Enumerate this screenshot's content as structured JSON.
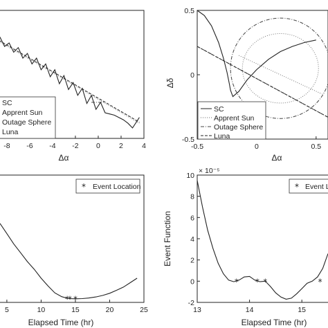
{
  "chart_data": [
    {
      "id": "tl",
      "type": "line",
      "xlabel": "Δα",
      "ylabel": "",
      "xlim": [
        -8.6,
        4.0
      ],
      "ylim": [
        -0.55,
        0.55
      ],
      "xticks": [
        -8,
        -6,
        -4,
        -2,
        0,
        2,
        4
      ],
      "yticks": [],
      "legend_position": "bottom-left",
      "series": [
        {
          "name": "SC",
          "style": "solid",
          "x": [
            -9.0,
            -8.6,
            -8.2,
            -7.8,
            -7.4,
            -7.0,
            -6.6,
            -6.2,
            -5.8,
            -5.4,
            -5.0,
            -4.6,
            -4.2,
            -3.8,
            -3.4,
            -3.0,
            -2.6,
            -2.2,
            -1.8,
            -1.4,
            -1.0,
            -0.6,
            -0.2,
            0.2,
            0.6,
            1.0,
            1.4,
            1.8,
            2.2,
            2.6,
            3.0,
            3.4,
            3.6
          ],
          "y": [
            0.3,
            0.32,
            0.24,
            0.27,
            0.19,
            0.23,
            0.14,
            0.18,
            0.09,
            0.14,
            0.04,
            0.09,
            -0.02,
            0.04,
            -0.08,
            -0.01,
            -0.13,
            -0.07,
            -0.18,
            -0.12,
            -0.25,
            -0.18,
            -0.3,
            -0.24,
            -0.33,
            -0.34,
            -0.35,
            -0.37,
            -0.39,
            -0.42,
            -0.46,
            -0.4,
            -0.37
          ]
        },
        {
          "name": "Apprent Sun",
          "style": "dotted",
          "x": [
            -9.0,
            3.6
          ],
          "y": [
            0.3,
            -0.42
          ]
        },
        {
          "name": "Outage Sphere",
          "style": "dashdot",
          "x": [
            -0.6,
            0.6
          ],
          "y": [
            -0.24,
            -0.24
          ]
        },
        {
          "name": "Luna",
          "style": "dashed",
          "x": [
            -9.0,
            3.6
          ],
          "y": [
            0.31,
            -0.41
          ]
        }
      ],
      "legend": [
        "SC",
        "Apprent Sun",
        "Outage Sphere",
        "Luna"
      ]
    },
    {
      "id": "tr",
      "type": "line",
      "xlabel": "Δα",
      "ylabel": "Δδ",
      "xlim": [
        -0.5,
        0.6
      ],
      "ylim": [
        -0.5,
        0.5
      ],
      "xticks": [
        -0.5,
        0,
        0.5
      ],
      "yticks": [
        -0.5,
        0,
        0.5
      ],
      "legend_position": "bottom-left",
      "series": [
        {
          "name": "SC",
          "style": "solid",
          "x": [
            -0.5,
            -0.44,
            -0.38,
            -0.32,
            -0.28,
            -0.25,
            -0.23,
            -0.22,
            -0.2,
            -0.15,
            -0.08,
            0.0,
            0.1,
            0.2,
            0.3,
            0.4,
            0.5
          ],
          "y": [
            0.5,
            0.46,
            0.38,
            0.25,
            0.13,
            0.02,
            -0.07,
            -0.12,
            -0.17,
            -0.13,
            -0.04,
            0.04,
            0.12,
            0.18,
            0.22,
            0.25,
            0.27
          ]
        },
        {
          "name": "Apprent Sun",
          "style": "dotted",
          "x": [
            -0.15,
            0.55
          ],
          "y": [
            0.15,
            -0.15
          ]
        },
        {
          "name": "Outage Sphere",
          "style": "dashdot",
          "x": [
            -0.5,
            0.6
          ],
          "y": [
            0.22,
            -0.33
          ]
        },
        {
          "name": "Luna",
          "style": "dashed",
          "x": [
            -0.5,
            0.6
          ],
          "y": [
            0.22,
            -0.33
          ]
        }
      ],
      "legend": [
        "SC",
        "Apprent Sun",
        "Outage Sphere",
        "Luna"
      ],
      "ellipses": [
        {
          "cx": 0.2,
          "cy": 0.05,
          "rx": 0.42,
          "ry": 0.39,
          "style": "dashdot"
        },
        {
          "cx": 0.2,
          "cy": 0.05,
          "rx": 0.32,
          "ry": 0.27,
          "style": "dotted"
        }
      ]
    },
    {
      "id": "bl",
      "type": "line",
      "xlabel": "Elapsed Time (hr)",
      "ylabel": "",
      "xlim": [
        4.0,
        25.0
      ],
      "ylim": [
        0,
        10
      ],
      "xticks": [
        5,
        10,
        15,
        20,
        25
      ],
      "yticks": [],
      "legend_position": "top-right",
      "series": [
        {
          "name": "",
          "style": "solid",
          "x": [
            4.0,
            5.0,
            6.0,
            7.0,
            8.0,
            9.0,
            10.0,
            11.0,
            12.0,
            13.0,
            14.0,
            15.0,
            16.0,
            17.0,
            18.0,
            19.0,
            20.0,
            21.0,
            22.0,
            23.0,
            24.0
          ],
          "y": [
            6.2,
            5.4,
            4.6,
            3.9,
            3.2,
            2.6,
            1.9,
            1.3,
            0.75,
            0.45,
            0.3,
            0.28,
            0.3,
            0.35,
            0.43,
            0.55,
            0.72,
            0.95,
            1.2,
            1.55,
            1.9
          ]
        }
      ],
      "events": {
        "name": "Event Location",
        "x": [
          13.8,
          14.2,
          15.0
        ],
        "y": [
          0.3,
          0.3,
          0.3
        ]
      },
      "legend": [
        "Event Location"
      ]
    },
    {
      "id": "br",
      "type": "line",
      "xlabel": "Elapsed Time (hr)",
      "ylabel": "Event Function",
      "exponent": "× 10⁻⁵",
      "xlim": [
        13.0,
        15.5
      ],
      "ylim": [
        -2,
        10
      ],
      "xticks": [
        13,
        14,
        15
      ],
      "yticks": [
        -2,
        0,
        2,
        4,
        6,
        8,
        10
      ],
      "legend_position": "top-right",
      "series": [
        {
          "name": "",
          "style": "solid",
          "x": [
            13.0,
            13.1,
            13.2,
            13.3,
            13.4,
            13.5,
            13.6,
            13.7,
            13.8,
            13.9,
            14.0,
            14.1,
            14.2,
            14.3,
            14.4,
            14.5,
            14.6,
            14.7,
            14.8,
            14.9,
            15.0,
            15.1,
            15.2,
            15.3,
            15.4,
            15.5
          ],
          "y": [
            9.5,
            7.0,
            4.8,
            3.1,
            1.7,
            0.7,
            0.1,
            -0.05,
            0.1,
            0.4,
            0.45,
            0.1,
            -0.05,
            0.0,
            -0.5,
            -1.1,
            -1.5,
            -1.7,
            -1.6,
            -1.2,
            -0.7,
            -0.2,
            0.0,
            0.4,
            1.2,
            2.6
          ]
        }
      ],
      "events": {
        "name": "Event L",
        "x": [
          13.75,
          14.15,
          14.3,
          15.35
        ],
        "y": [
          0.0,
          0.0,
          0.0,
          0.0
        ]
      },
      "legend": [
        "Event L"
      ]
    }
  ]
}
